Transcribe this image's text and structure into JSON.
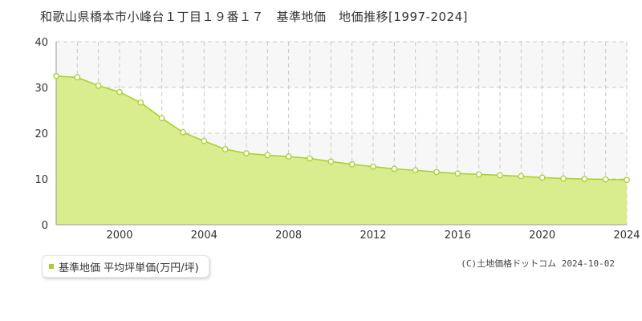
{
  "title": "和歌山県橋本市小峰台１丁目１９番１７　基準地価　地価推移[1997-2024]",
  "legend_label": "基準地価 平均坪単価(万円/坪)",
  "copyright": "(C)土地価格ドットコム 2024-10-02",
  "colors": {
    "fill": "#d9ec8e",
    "line": "#a8cf2c",
    "band": "#f7f7f7",
    "grid": "#c8c8c8",
    "marker_fill": "#ffffff",
    "marker_stroke": "#a8cf2c"
  },
  "chart_data": {
    "type": "area",
    "title": "和歌山県橋本市小峰台１丁目１９番１７　基準地価　地価推移[1997-2024]",
    "x": [
      1997,
      1998,
      1999,
      2000,
      2001,
      2002,
      2003,
      2004,
      2005,
      2006,
      2007,
      2008,
      2009,
      2010,
      2011,
      2012,
      2013,
      2014,
      2015,
      2016,
      2017,
      2018,
      2019,
      2020,
      2021,
      2022,
      2023,
      2024
    ],
    "series": [
      {
        "name": "基準地価 平均坪単価(万円/坪)",
        "values": [
          32.5,
          32.2,
          30.4,
          29.0,
          26.7,
          23.3,
          20.2,
          18.3,
          16.5,
          15.6,
          15.2,
          14.9,
          14.5,
          13.8,
          13.2,
          12.7,
          12.2,
          11.9,
          11.5,
          11.2,
          11.0,
          10.8,
          10.6,
          10.3,
          10.1,
          10.0,
          9.9,
          9.8
        ]
      }
    ],
    "xlim": [
      1997,
      2024
    ],
    "ylim": [
      0,
      40
    ],
    "y_ticks": [
      0,
      10,
      20,
      30,
      40
    ],
    "x_tick_labels": [
      2000,
      2004,
      2008,
      2012,
      2016,
      2020,
      2024
    ],
    "xlabel": "",
    "ylabel": "",
    "grid": true,
    "legend_position": "bottom-left"
  }
}
